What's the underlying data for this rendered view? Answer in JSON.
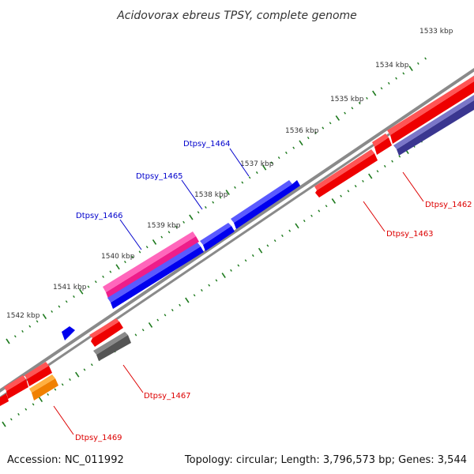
{
  "title": "Acidovorax ebreus TPSY, complete genome",
  "footer": {
    "accession": "Accession: NC_011992",
    "summary": "Topology: circular; Length: 3,796,573 bp; Genes: 3,544"
  },
  "colors": {
    "backbone": "#8a8a8a",
    "tick": "#1e7a1e",
    "label_blue": "#0000cc",
    "label_red": "#dd0000"
  },
  "scale_labels": [
    "1533 kbp",
    "1534 kbp",
    "1535 kbp",
    "1536 kbp",
    "1537 kbp",
    "1538 kbp",
    "1539 kbp",
    "1540 kbp",
    "1541 kbp",
    "1542 kbp"
  ],
  "gene_labels": [
    {
      "text": "Dtpsy_1464",
      "color": "#0000cc"
    },
    {
      "text": "Dtpsy_1465",
      "color": "#0000cc"
    },
    {
      "text": "Dtpsy_1466",
      "color": "#0000cc"
    },
    {
      "text": "Dtpsy_1462",
      "color": "#dd0000"
    },
    {
      "text": "Dtpsy_1463",
      "color": "#dd0000"
    },
    {
      "text": "Dtpsy_1467",
      "color": "#dd0000"
    },
    {
      "text": "Dtpsy_1469",
      "color": "#dd0000"
    }
  ]
}
